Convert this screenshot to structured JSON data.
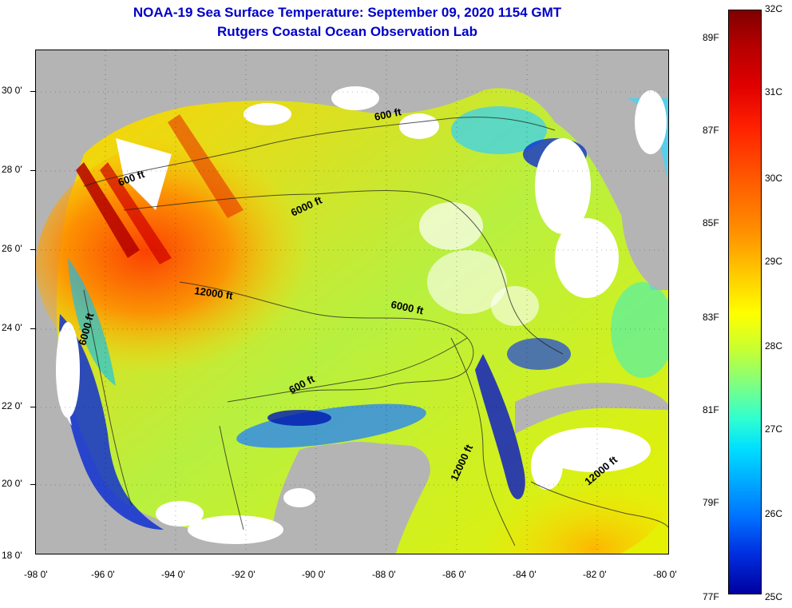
{
  "title_line1": "NOAA-19 Sea Surface Temperature:  September 09, 2020 1154 GMT",
  "title_line2": "Rutgers Coastal Ocean Observation Lab",
  "lat_labels": [
    "30 0'",
    "28 0'",
    "26 0'",
    "24 0'",
    "22 0'",
    "20 0'",
    "18 0'"
  ],
  "lon_labels": [
    "-98 0'",
    "-96 0'",
    "-94 0'",
    "-92 0'",
    "-90 0'",
    "-88 0'",
    "-86 0'",
    "-84 0'",
    "-82 0'",
    "-80 0'"
  ],
  "contour_labels": [
    "600 ft",
    "6000 ft",
    "12000 ft",
    "6000 ft",
    "6000 ft",
    "600 ft",
    "600 ft",
    "12000 ft",
    "12000 ft"
  ],
  "colorbar": {
    "celsius": [
      "32C",
      "31C",
      "30C",
      "29C",
      "28C",
      "27C",
      "26C",
      "25C"
    ],
    "fahrenheit": [
      "89F",
      "87F",
      "85F",
      "83F",
      "81F",
      "79F",
      "77F"
    ]
  },
  "colors": {
    "title": "#0000c8",
    "land": "#b4b4b4",
    "cloud": "#ffffff"
  }
}
